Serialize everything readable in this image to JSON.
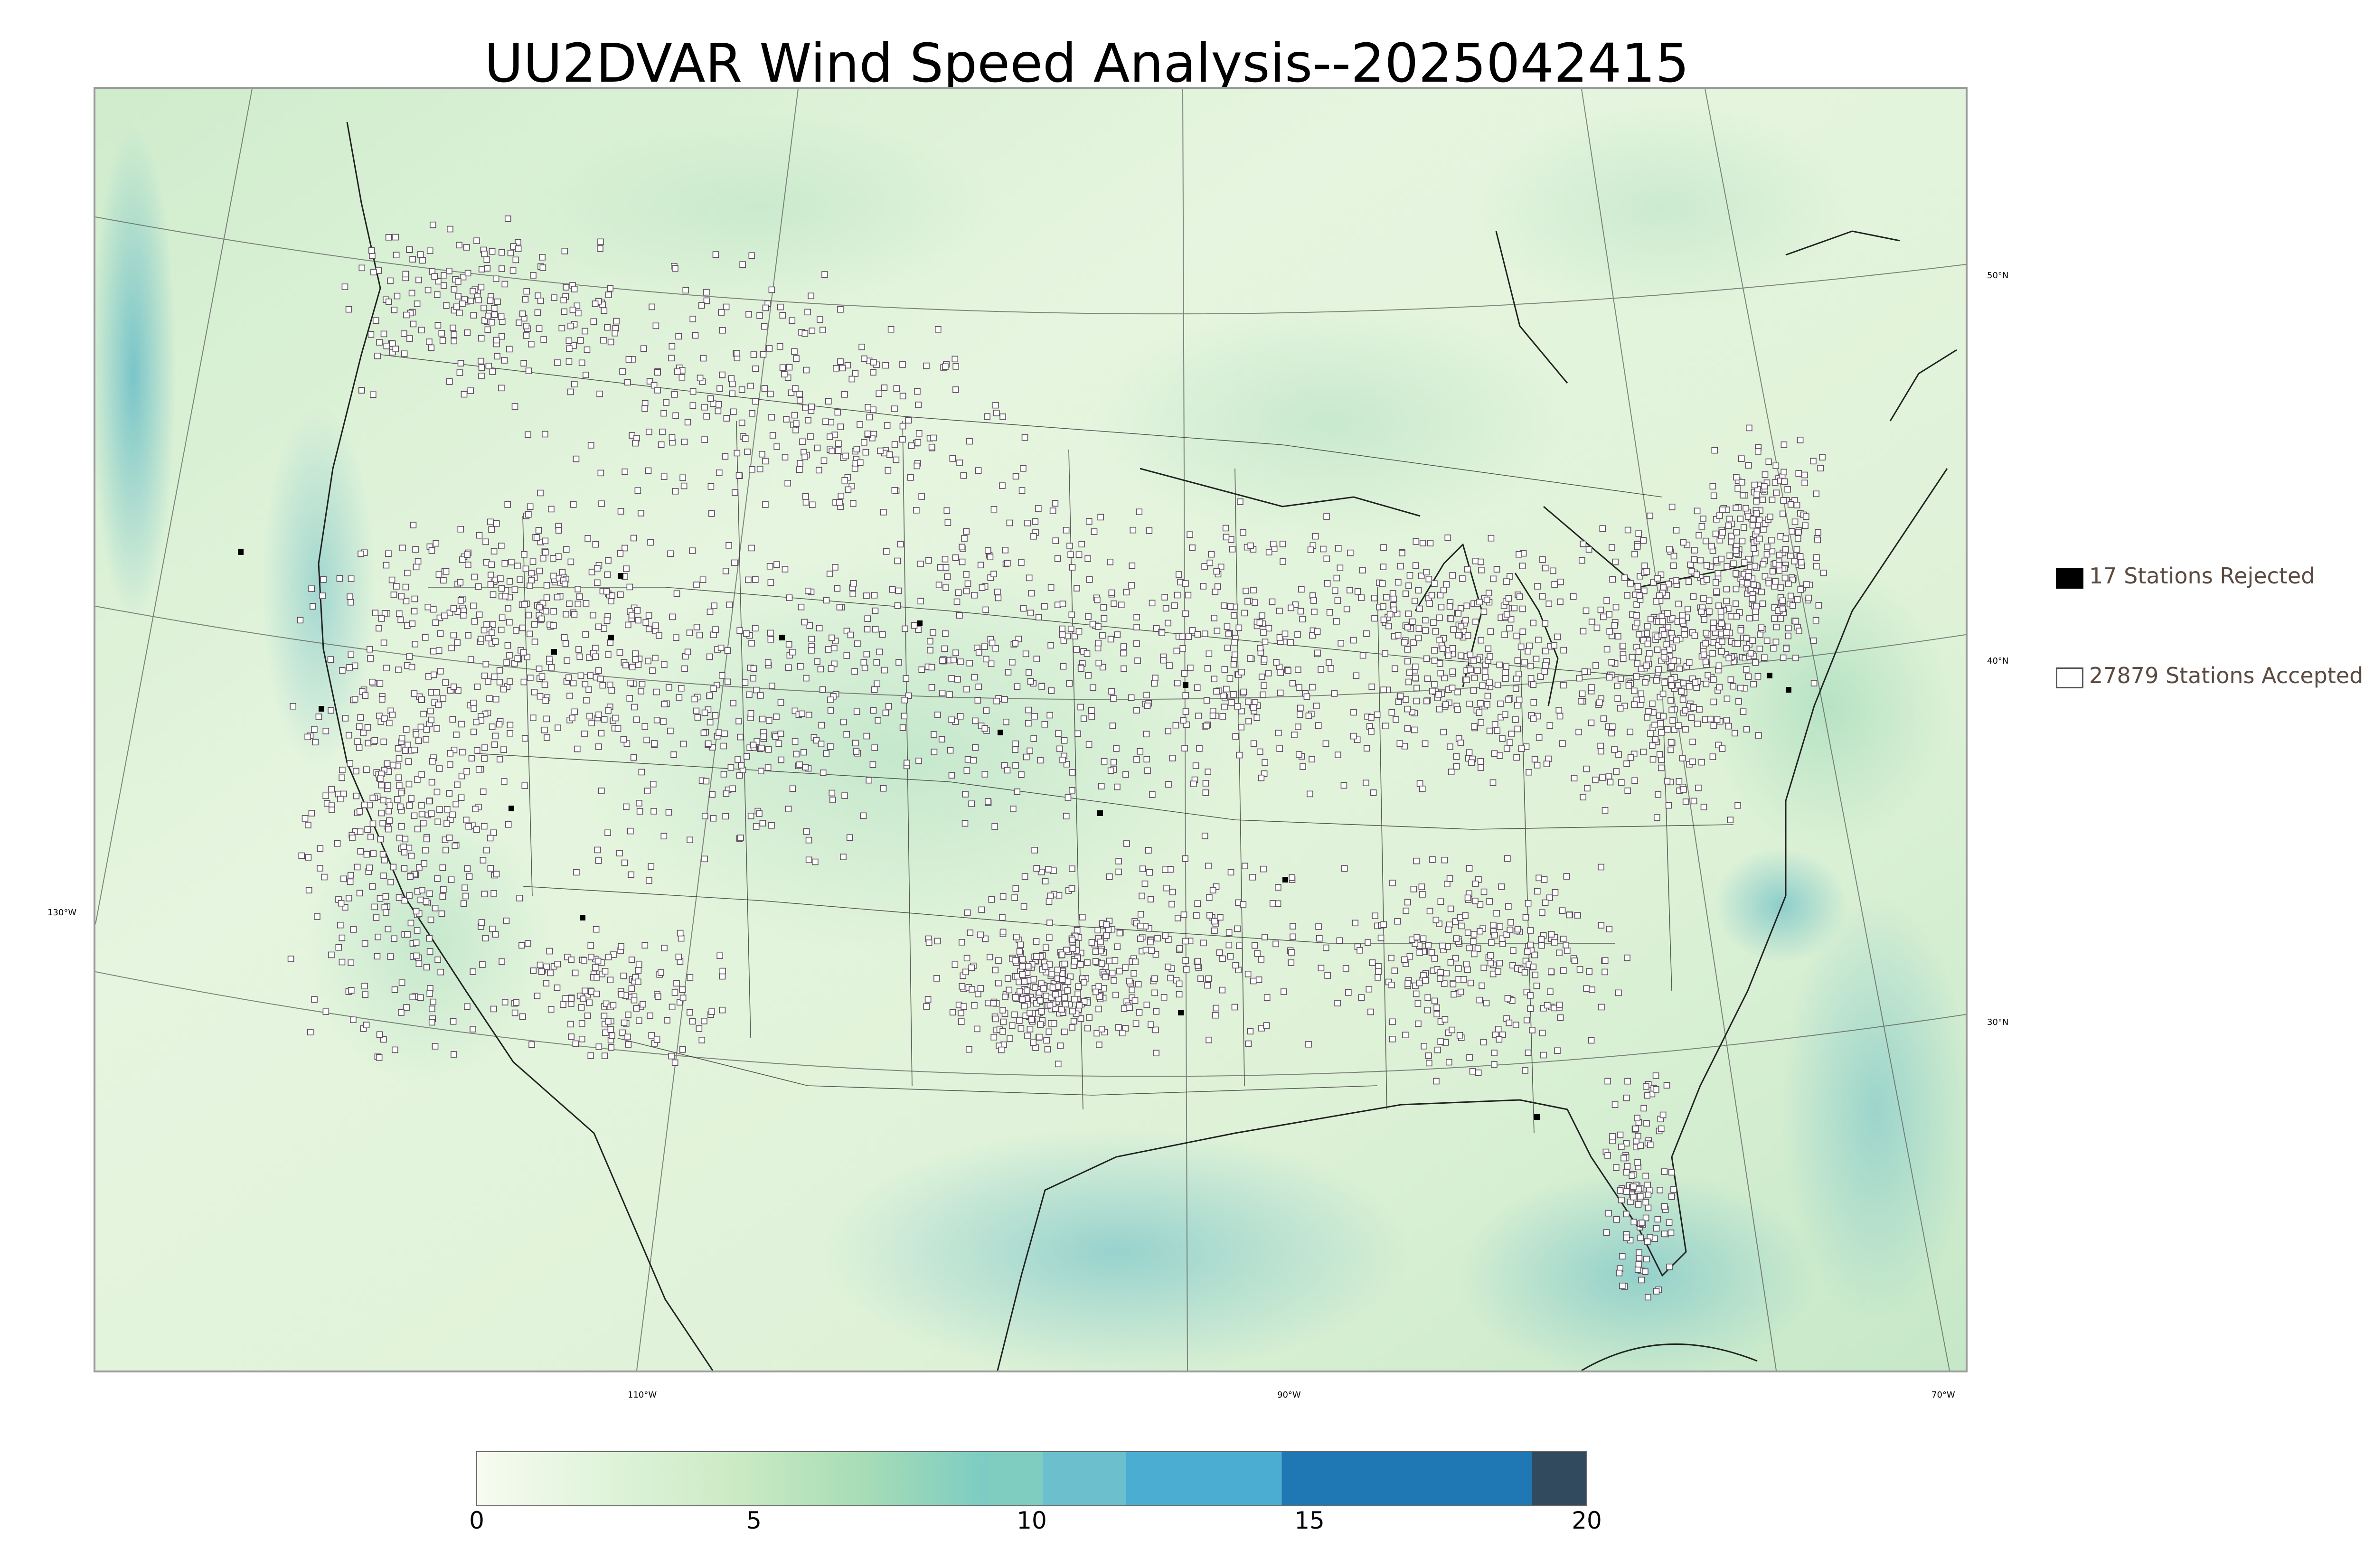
{
  "title": "UU2DVAR Wind Speed Analysis--2025042415",
  "map": {
    "lon_labels": [
      "130°W",
      "110°W",
      "90°W",
      "70°W"
    ],
    "lat_labels": [
      "50°N",
      "40°N",
      "30°N"
    ]
  },
  "legend": {
    "rejected": {
      "label": "17 Stations Rejected",
      "count": 17,
      "color": "#000000"
    },
    "accepted": {
      "label": "27879 Stations Accepted",
      "count": 27879,
      "color": "#ffffff"
    }
  },
  "colorbar": {
    "ticks": [
      "0",
      "5",
      "10",
      "15",
      "20"
    ],
    "min": 0,
    "max": 20,
    "bins": [
      {
        "from": 0,
        "to": 9.2,
        "color": "gradient"
      },
      {
        "from": 9.2,
        "to": 10.2,
        "color": "#7fcdc0"
      },
      {
        "from": 10.2,
        "to": 11.7,
        "color": "#6cc0cd"
      },
      {
        "from": 11.7,
        "to": 14.5,
        "color": "#4cadd2"
      },
      {
        "from": 14.5,
        "to": 19.0,
        "color": "#1f78b4"
      },
      {
        "from": 19.0,
        "to": 20,
        "color": "#314a5e"
      }
    ],
    "gradient_colors": [
      "#f7fcf0",
      "#e0f3db",
      "#ccebc5",
      "#a8ddb5",
      "#7bccc4"
    ]
  }
}
